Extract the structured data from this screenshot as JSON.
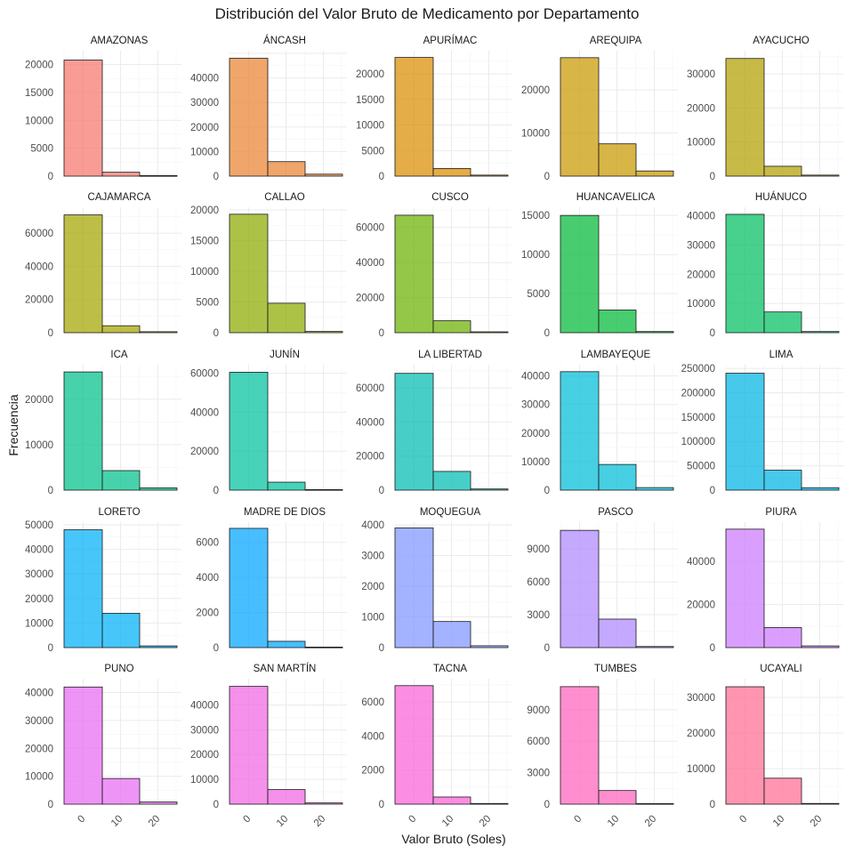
{
  "chart_data": {
    "type": "bar",
    "title": "Distribución del Valor Bruto de Medicamento por Departamento",
    "xlabel": "Valor Bruto (Soles)",
    "ylabel": "Frecuencia",
    "x_ticks": [
      "0",
      "10",
      "20"
    ],
    "bin_width": 10,
    "bin_centers": [
      0,
      10,
      20
    ],
    "grid": true,
    "panels": [
      {
        "name": "AMAZONAS",
        "color": "#F8766D",
        "values": [
          20800,
          700,
          100
        ],
        "ymax": 22000,
        "yticks": [
          "0",
          "5000",
          "10000",
          "15000",
          "20000"
        ]
      },
      {
        "name": "ÁNCASH",
        "color": "#EA8331",
        "values": [
          48000,
          5900,
          800
        ],
        "ymax": 50000,
        "yticks": [
          "0",
          "10000",
          "20000",
          "30000",
          "40000"
        ]
      },
      {
        "name": "APURÍMAC",
        "color": "#DB8E00",
        "values": [
          23200,
          1500,
          200
        ],
        "ymax": 24000,
        "yticks": [
          "0",
          "5000",
          "10000",
          "15000",
          "20000"
        ]
      },
      {
        "name": "AREQUIPA",
        "color": "#C99800",
        "values": [
          27500,
          7500,
          1200
        ],
        "ymax": 28500,
        "yticks": [
          "0",
          "10000",
          "20000"
        ]
      },
      {
        "name": "AYACUCHO",
        "color": "#B3A000",
        "values": [
          34500,
          2900,
          300
        ],
        "ymax": 36000,
        "yticks": [
          "0",
          "10000",
          "20000",
          "30000"
        ]
      },
      {
        "name": "CAJAMARCA",
        "color": "#A3A500",
        "values": [
          71000,
          4200,
          600
        ],
        "ymax": 74000,
        "yticks": [
          "0",
          "20000",
          "40000",
          "60000"
        ]
      },
      {
        "name": "CALLAO",
        "color": "#8AAB00",
        "values": [
          19300,
          4800,
          200
        ],
        "ymax": 20000,
        "yticks": [
          "0",
          "5000",
          "10000",
          "15000",
          "20000"
        ]
      },
      {
        "name": "CUSCO",
        "color": "#6BB100",
        "values": [
          67000,
          6800,
          500
        ],
        "ymax": 70000,
        "yticks": [
          "0",
          "20000",
          "40000",
          "60000"
        ]
      },
      {
        "name": "HUANCAVELICA",
        "color": "#00BA38",
        "values": [
          15000,
          2900,
          150
        ],
        "ymax": 15700,
        "yticks": [
          "0",
          "5000",
          "10000",
          "15000"
        ]
      },
      {
        "name": "HUÁNUCO",
        "color": "#00BF5F",
        "values": [
          40500,
          7100,
          400
        ],
        "ymax": 42000,
        "yticks": [
          "0",
          "10000",
          "20000",
          "30000",
          "40000"
        ]
      },
      {
        "name": "ICA",
        "color": "#00C08B",
        "values": [
          26000,
          4300,
          500
        ],
        "ymax": 27000,
        "yticks": [
          "0",
          "10000",
          "20000"
        ]
      },
      {
        "name": "JUNÍN",
        "color": "#00C0A0",
        "values": [
          60500,
          4100,
          300
        ],
        "ymax": 63000,
        "yticks": [
          "0",
          "20000",
          "40000",
          "60000"
        ]
      },
      {
        "name": "LA LIBERTAD",
        "color": "#00BDB1",
        "values": [
          68500,
          11000,
          700
        ],
        "ymax": 72000,
        "yticks": [
          "0",
          "20000",
          "40000",
          "60000"
        ]
      },
      {
        "name": "LAMBAYEQUE",
        "color": "#00BCD8",
        "values": [
          41500,
          9000,
          900
        ],
        "ymax": 43000,
        "yticks": [
          "0",
          "10000",
          "20000",
          "30000",
          "40000"
        ]
      },
      {
        "name": "LIMA",
        "color": "#00B4E4",
        "values": [
          240000,
          41000,
          5000
        ],
        "ymax": 252000,
        "yticks": [
          "0",
          "50000",
          "100000",
          "150000",
          "200000",
          "250000"
        ]
      },
      {
        "name": "LORETO",
        "color": "#00B0F6",
        "values": [
          48000,
          14000,
          700
        ],
        "ymax": 50000,
        "yticks": [
          "0",
          "10000",
          "20000",
          "30000",
          "40000",
          "50000"
        ]
      },
      {
        "name": "MADRE DE DIOS",
        "color": "#00A5FF",
        "values": [
          6800,
          360,
          30
        ],
        "ymax": 7000,
        "yticks": [
          "0",
          "2000",
          "4000",
          "6000"
        ]
      },
      {
        "name": "MOQUEGUA",
        "color": "#7F96FF",
        "values": [
          3900,
          850,
          60
        ],
        "ymax": 4000,
        "yticks": [
          "0",
          "1000",
          "2000",
          "3000",
          "4000"
        ]
      },
      {
        "name": "PASCO",
        "color": "#AD88FF",
        "values": [
          10700,
          2600,
          100
        ],
        "ymax": 11200,
        "yticks": [
          "0",
          "3000",
          "6000",
          "9000"
        ]
      },
      {
        "name": "PIURA",
        "color": "#CC79FF",
        "values": [
          55000,
          9300,
          800
        ],
        "ymax": 57000,
        "yticks": [
          "0",
          "20000",
          "40000"
        ]
      },
      {
        "name": "PUNO",
        "color": "#E76BF3",
        "values": [
          42000,
          9200,
          800
        ],
        "ymax": 44000,
        "yticks": [
          "0",
          "10000",
          "20000",
          "30000",
          "40000"
        ]
      },
      {
        "name": "SAN MARTÍN",
        "color": "#F165E3",
        "values": [
          47500,
          5900,
          500
        ],
        "ymax": 49500,
        "yticks": [
          "0",
          "10000",
          "20000",
          "30000",
          "40000"
        ]
      },
      {
        "name": "TACNA",
        "color": "#FA62D7",
        "values": [
          6950,
          420,
          40
        ],
        "ymax": 7200,
        "yticks": [
          "0",
          "2000",
          "4000",
          "6000"
        ]
      },
      {
        "name": "TUMBES",
        "color": "#FF62BC",
        "values": [
          11200,
          1300,
          60
        ],
        "ymax": 11700,
        "yticks": [
          "0",
          "3000",
          "6000",
          "9000"
        ]
      },
      {
        "name": "UCAYALI",
        "color": "#FF6C91",
        "values": [
          33000,
          7300,
          200
        ],
        "ymax": 34500,
        "yticks": [
          "0",
          "10000",
          "20000",
          "30000"
        ]
      }
    ]
  }
}
